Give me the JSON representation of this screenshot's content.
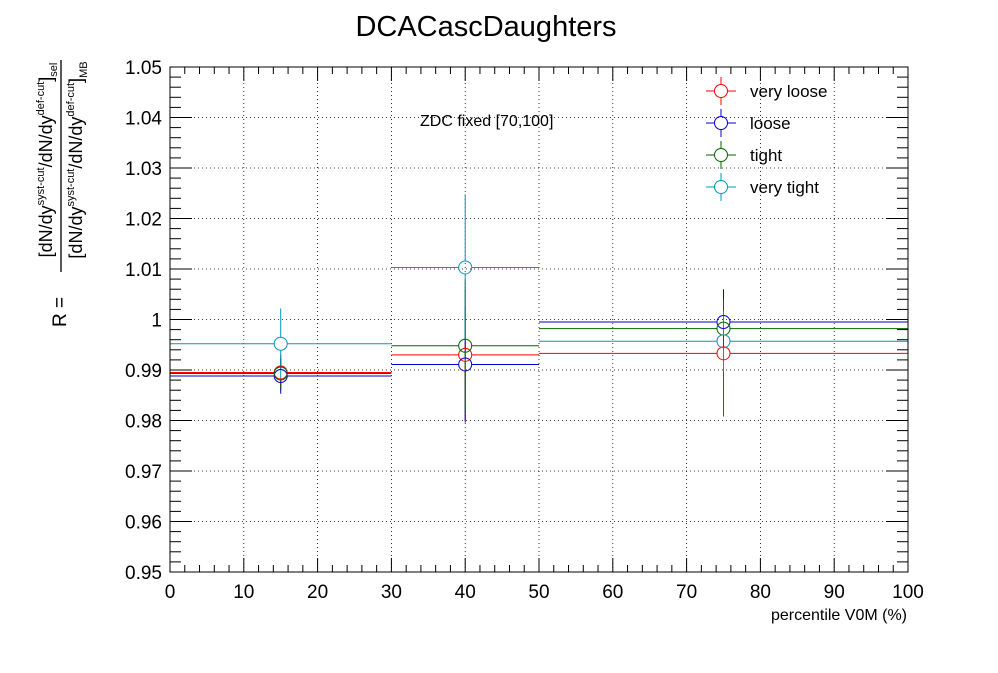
{
  "chart_data": {
    "type": "scatter",
    "title": "DCACascDaughters",
    "xlabel": "percentile V0M (%)",
    "ylabel": {
      "prefix": "R =",
      "numerator": "[dN/dy^{syst-cut}/dN/dy^{def-cut}]_{sel}",
      "denominator": "[dN/dy^{syst-cut}/dN/dy^{def-cut}]_{MB}",
      "parts": {
        "dndy": "dN/dy",
        "syst": "syst-cut",
        "def": "def-cut",
        "sel": "sel",
        "mb": "MB"
      }
    },
    "annotation": "ZDC fixed [70,100]",
    "xlim": [
      0,
      100
    ],
    "ylim": [
      0.95,
      1.05
    ],
    "grid": true,
    "legend_position": "top-right",
    "xticks": [
      0,
      10,
      20,
      30,
      40,
      50,
      60,
      70,
      80,
      90,
      100
    ],
    "xtick_labels": [
      "0",
      "10",
      "20",
      "30",
      "40",
      "50",
      "60",
      "70",
      "80",
      "90",
      "100"
    ],
    "yticks": [
      0.95,
      0.96,
      0.97,
      0.98,
      0.99,
      1.0,
      1.01,
      1.02,
      1.03,
      1.04,
      1.05
    ],
    "ytick_labels": [
      "0.95",
      "0.96",
      "0.97",
      "0.98",
      "0.99",
      "1",
      "1.01",
      "1.02",
      "1.03",
      "1.04",
      "1.05"
    ],
    "bins": [
      [
        0,
        30
      ],
      [
        30,
        50
      ],
      [
        50,
        100
      ]
    ],
    "x": [
      15,
      40,
      75
    ],
    "series": [
      {
        "name": "very loose",
        "color": "#ff0000",
        "y": [
          0.9895,
          0.993,
          0.9933
        ],
        "yerr": [
          0.0035,
          0.013,
          0.0125
        ]
      },
      {
        "name": "loose",
        "color": "#0000cc",
        "y": [
          0.9888,
          0.9911,
          0.9995
        ],
        "yerr": [
          0.0035,
          0.0115,
          0.0065
        ]
      },
      {
        "name": "tight",
        "color": "#006600",
        "y": [
          0.9893,
          0.9948,
          0.9982
        ],
        "yerr": [
          0.003,
          0.013,
          0.006
        ]
      },
      {
        "name": "very tight",
        "color": "#0099bb",
        "y": [
          0.9952,
          1.0103,
          0.9957
        ],
        "yerr": [
          0.007,
          0.0145,
          0.006
        ]
      }
    ]
  }
}
